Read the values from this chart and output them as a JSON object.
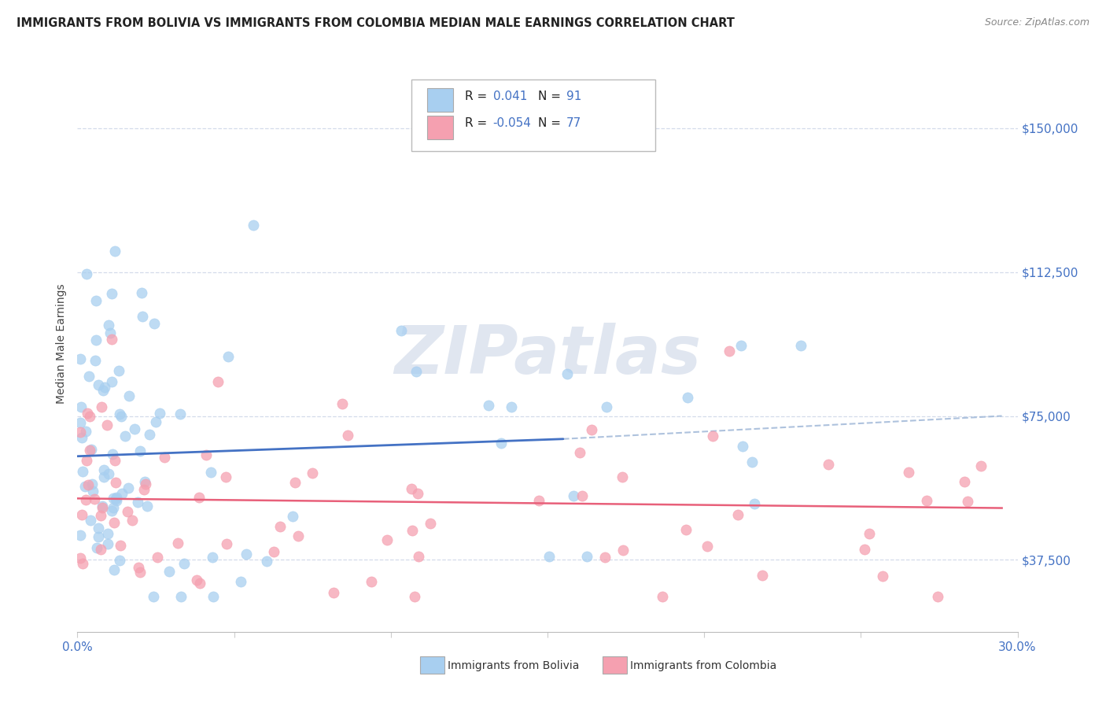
{
  "title": "IMMIGRANTS FROM BOLIVIA VS IMMIGRANTS FROM COLOMBIA MEDIAN MALE EARNINGS CORRELATION CHART",
  "source": "Source: ZipAtlas.com",
  "ylabel": "Median Male Earnings",
  "xlim": [
    0.0,
    0.3
  ],
  "ylim": [
    18750,
    168750
  ],
  "yticks": [
    37500,
    75000,
    112500,
    150000
  ],
  "ytick_labels": [
    "$37,500",
    "$75,000",
    "$112,500",
    "$150,000"
  ],
  "xticks": [
    0.0,
    0.05,
    0.1,
    0.15,
    0.2,
    0.25,
    0.3
  ],
  "bolivia_R": 0.041,
  "bolivia_N": 91,
  "colombia_R": -0.054,
  "colombia_N": 77,
  "bolivia_color": "#a8cff0",
  "colombia_color": "#f5a0b0",
  "bolivia_line_color": "#4472c4",
  "colombia_line_color": "#e8607a",
  "dash_line_color": "#a0b8d8",
  "axis_label_color": "#4472c4",
  "grid_color": "#d0d8e8",
  "watermark": "ZIPatlas",
  "watermark_color": "#e0e6f0"
}
